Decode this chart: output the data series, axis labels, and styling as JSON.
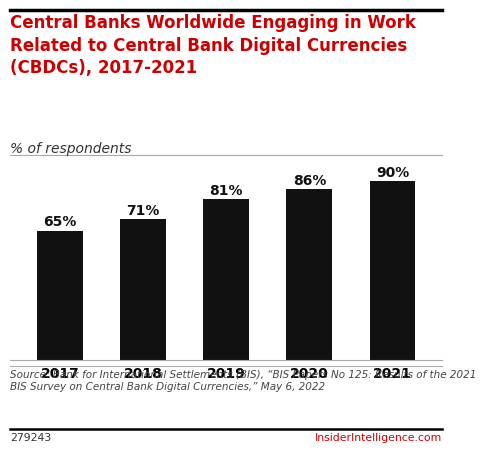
{
  "title_line1": "Central Banks Worldwide Engaging in Work",
  "title_line2": "Related to Central Bank Digital Currencies",
  "title_line3": "(CBDCs), 2017-2021",
  "subtitle": "% of respondents",
  "categories": [
    "2017",
    "2018",
    "2019",
    "2020",
    "2021"
  ],
  "values": [
    65,
    71,
    81,
    86,
    90
  ],
  "bar_color": "#111111",
  "label_color": "#111111",
  "title_color": "#cc0000",
  "subtitle_color": "#333333",
  "source_text": "Source: Bank for International Settlements (BIS), “BIS Papers No 125: Results of the 2021\nBIS Survey on Central Bank Digital Currencies,” May 6, 2022",
  "footnote_left": "279243",
  "footnote_right": "InsiderIntelligence.com",
  "footnote_right_color": "#cc0000",
  "bg_color": "#ffffff",
  "ylim": [
    0,
    100
  ],
  "bar_label_fontsize": 10,
  "title_fontsize": 12.0,
  "subtitle_fontsize": 10.0,
  "tick_fontsize": 10.0,
  "source_fontsize": 7.5,
  "footnote_fontsize": 7.8
}
